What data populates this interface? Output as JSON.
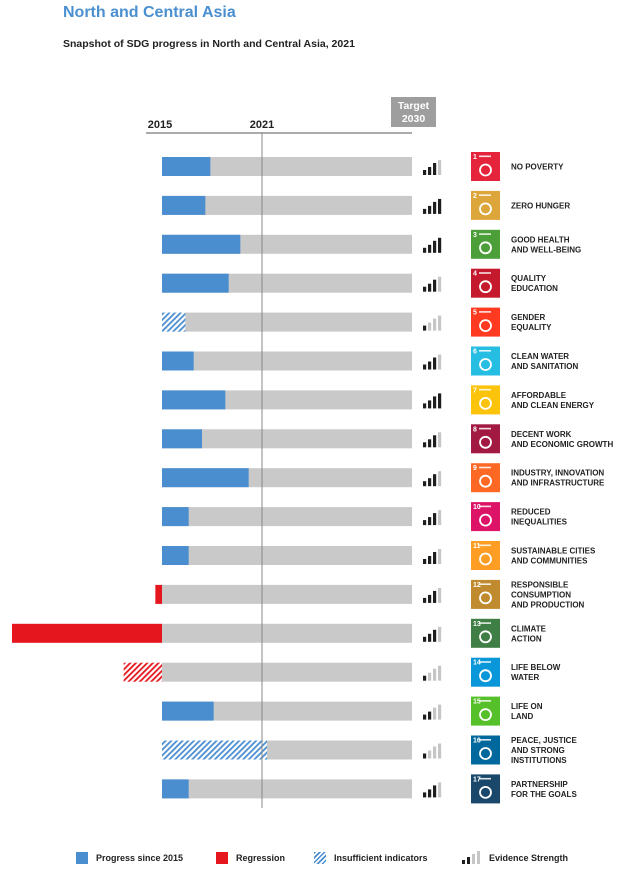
{
  "title": "North and Central Asia",
  "subtitle": "Snapshot of SDG progress in North and Central Asia, 2021",
  "chart_data": {
    "type": "bar",
    "axis_labels": {
      "start": "2015",
      "current": "2021",
      "target_line1": "Target",
      "target_line2": "2030"
    },
    "xlim": [
      2015,
      2030
    ],
    "current_year": 2021,
    "goals": [
      {
        "num": "1",
        "label1": "NO POVERTY",
        "label2": "",
        "label3": "",
        "color": "#e5243b",
        "type": "progress",
        "value": 2.9,
        "strength": 3,
        "icon": "family-icon"
      },
      {
        "num": "2",
        "label1": "ZERO HUNGER",
        "label2": "",
        "label3": "",
        "color": "#dda63a",
        "type": "progress",
        "value": 2.6,
        "strength": 4,
        "icon": "bowl-icon"
      },
      {
        "num": "3",
        "label1": "GOOD HEALTH",
        "label2": "AND WELL-BEING",
        "label3": "",
        "color": "#4c9f38",
        "type": "progress",
        "value": 4.7,
        "strength": 4,
        "icon": "heartbeat-icon"
      },
      {
        "num": "4",
        "label1": "QUALITY",
        "label2": "EDUCATION",
        "label3": "",
        "color": "#c5192d",
        "type": "progress",
        "value": 4.0,
        "strength": 3,
        "icon": "book-icon"
      },
      {
        "num": "5",
        "label1": "GENDER",
        "label2": "EQUALITY",
        "label3": "",
        "color": "#ff3a21",
        "type": "insufficient",
        "value": 1.4,
        "strength": 1,
        "icon": "gender-icon"
      },
      {
        "num": "6",
        "label1": "CLEAN WATER",
        "label2": "AND SANITATION",
        "label3": "",
        "color": "#26bde2",
        "type": "progress",
        "value": 1.9,
        "strength": 3,
        "icon": "water-icon"
      },
      {
        "num": "7",
        "label1": "AFFORDABLE",
        "label2": "AND CLEAN ENERGY",
        "label3": "",
        "color": "#fcc30b",
        "type": "progress",
        "value": 3.8,
        "strength": 4,
        "icon": "sun-icon"
      },
      {
        "num": "8",
        "label1": "DECENT WORK",
        "label2": "AND ECONOMIC GROWTH",
        "label3": "",
        "color": "#a21942",
        "type": "progress",
        "value": 2.4,
        "strength": 3,
        "icon": "growth-chart-icon"
      },
      {
        "num": "9",
        "label1": "INDUSTRY, INNOVATION",
        "label2": "AND INFRASTRUCTURE",
        "label3": "",
        "color": "#fd6925",
        "type": "progress",
        "value": 5.2,
        "strength": 3,
        "icon": "cubes-icon"
      },
      {
        "num": "10",
        "label1": "REDUCED",
        "label2": "INEQUALITIES",
        "label3": "",
        "color": "#dd1367",
        "type": "progress",
        "value": 1.6,
        "strength": 3,
        "icon": "arrows-icon"
      },
      {
        "num": "11",
        "label1": "SUSTAINABLE CITIES",
        "label2": "AND COMMUNITIES",
        "label3": "",
        "color": "#fd9d24",
        "type": "progress",
        "value": 1.6,
        "strength": 3,
        "icon": "city-icon"
      },
      {
        "num": "12",
        "label1": "RESPONSIBLE",
        "label2": "CONSUMPTION",
        "label3": "AND PRODUCTION",
        "color": "#bf8b2e",
        "type": "regression",
        "value": 0.4,
        "strength": 3,
        "icon": "infinity-icon"
      },
      {
        "num": "13",
        "label1": "CLIMATE",
        "label2": "ACTION",
        "label3": "",
        "color": "#3f7e44",
        "type": "regression",
        "value": 9.0,
        "strength": 3,
        "icon": "eye-globe-icon"
      },
      {
        "num": "14",
        "label1": "LIFE BELOW",
        "label2": "WATER",
        "label3": "",
        "color": "#0a97d9",
        "type": "regression-insufficient",
        "value": 2.3,
        "strength": 1,
        "icon": "fish-icon"
      },
      {
        "num": "15",
        "label1": "LIFE ON",
        "label2": "LAND",
        "label3": "",
        "color": "#56c02b",
        "type": "progress",
        "value": 3.1,
        "strength": 2,
        "icon": "tree-icon"
      },
      {
        "num": "16",
        "label1": "PEACE, JUSTICE",
        "label2": "AND STRONG",
        "label3": "INSTITUTIONS",
        "color": "#00689d",
        "type": "insufficient",
        "value": 6.3,
        "strength": 1,
        "icon": "dove-icon"
      },
      {
        "num": "17",
        "label1": "PARTNERSHIP",
        "label2": "FOR THE GOALS",
        "label3": "",
        "color": "#19486a",
        "type": "progress",
        "value": 1.6,
        "strength": 3,
        "icon": "circle-flower-icon"
      }
    ]
  },
  "legend": {
    "progress": "Progress since 2015",
    "regression": "Regression",
    "insufficient": "Insufficient indicators",
    "strength": "Evidence Strength"
  },
  "colors": {
    "progress": "#4a8ed0",
    "regression": "#e5161d",
    "track": "#c9c9c9",
    "strength_dark": "#1e1e1e",
    "strength_light": "#c6c6c6",
    "title": "#4a8fd0"
  }
}
